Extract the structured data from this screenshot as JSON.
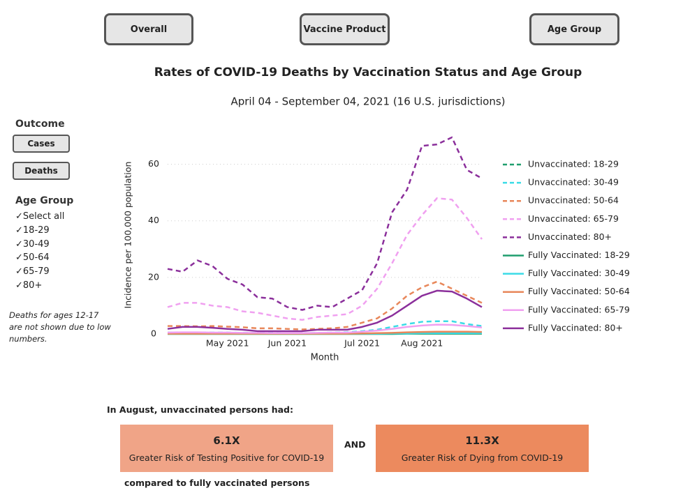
{
  "buttons": [
    "Overall",
    "Vaccine Product",
    "Age Group"
  ],
  "sidebar": {
    "outcome_title": "Outcome",
    "outcome_buttons": [
      "Cases",
      "Deaths"
    ],
    "age_title": "Age Group",
    "checks": [
      "Select all",
      "18-29",
      "30-49",
      "50-64",
      "65-79",
      "80+"
    ],
    "note": "Deaths for ages 12-17 are not shown due to low numbers."
  },
  "chart_data": {
    "type": "line",
    "title": "Rates of COVID-19 Deaths by Vaccination Status and Age Group",
    "subtitle": "April 04 - September 04, 2021 (16 U.S. jurisdictions)",
    "x_label": "Month",
    "y_label": "Incidence per 100,000 population",
    "categories": [
      null,
      null,
      null,
      null,
      "May 2021",
      null,
      null,
      null,
      "Jun 2021",
      null,
      null,
      null,
      null,
      "Jul 2021",
      null,
      null,
      null,
      "Aug 2021",
      null,
      null,
      null,
      null
    ],
    "ylim": [
      0,
      70
    ],
    "yticks": [
      0,
      20,
      40,
      60
    ],
    "grid": true,
    "legend": "right",
    "series": [
      {
        "name": "Unvaccinated: 18-29",
        "color": "#1f9e6e",
        "dashed": true,
        "values": [
          0.1,
          0.1,
          0.1,
          0.1,
          0.1,
          0.1,
          0.1,
          0.1,
          0.1,
          0.1,
          0.1,
          0.1,
          0.1,
          0.2,
          0.2,
          0.3,
          0.4,
          0.5,
          0.5,
          0.5,
          0.4,
          0.4
        ]
      },
      {
        "name": "Unvaccinated: 30-49",
        "color": "#3adbe6",
        "dashed": true,
        "values": [
          0.5,
          0.5,
          0.5,
          0.5,
          0.5,
          0.4,
          0.4,
          0.4,
          0.3,
          0.3,
          0.4,
          0.5,
          0.6,
          1,
          1.5,
          2.5,
          3.5,
          4.3,
          4.5,
          4.5,
          3.5,
          2.8
        ]
      },
      {
        "name": "Unvaccinated: 50-64",
        "color": "#e8875a",
        "dashed": true,
        "values": [
          2.8,
          2.8,
          2.7,
          2.8,
          2.6,
          2.4,
          2,
          2,
          1.8,
          1.6,
          1.8,
          2,
          2.5,
          4,
          5.5,
          9,
          13.5,
          16.5,
          18.5,
          16,
          13.5,
          11
        ]
      },
      {
        "name": "Unvaccinated: 65-79",
        "color": "#f0a0f0",
        "dashed": true,
        "values": [
          9.5,
          11,
          11,
          10,
          9.5,
          8,
          7.5,
          6.5,
          5.5,
          5,
          6,
          6.5,
          7,
          10,
          16,
          25,
          35,
          42,
          48,
          47.5,
          41,
          33.5
        ]
      },
      {
        "name": "Unvaccinated: 80+",
        "color": "#8b2f9b",
        "dashed": true,
        "values": [
          23,
          22,
          26,
          24,
          19.5,
          17.5,
          13,
          12.5,
          9.5,
          8.5,
          10,
          9.5,
          12.5,
          15.5,
          25,
          43,
          51,
          66.5,
          67,
          69.5,
          58,
          55
        ]
      },
      {
        "name": "Fully Vaccinated: 18-29",
        "color": "#1f9e6e",
        "dashed": false,
        "values": [
          0,
          0,
          0,
          0,
          0,
          0,
          0,
          0,
          0,
          0,
          0,
          0,
          0,
          0,
          0,
          0,
          0.1,
          0.1,
          0.1,
          0.1,
          0.1,
          0.1
        ]
      },
      {
        "name": "Fully Vaccinated: 30-49",
        "color": "#3adbe6",
        "dashed": false,
        "values": [
          0.1,
          0.1,
          0.1,
          0.1,
          0.1,
          0.1,
          0.1,
          0.1,
          0.1,
          0.1,
          0.1,
          0.1,
          0.1,
          0.1,
          0.1,
          0.2,
          0.2,
          0.3,
          0.3,
          0.3,
          0.3,
          0.3
        ]
      },
      {
        "name": "Fully Vaccinated: 50-64",
        "color": "#e8875a",
        "dashed": false,
        "values": [
          0.1,
          0.1,
          0.1,
          0.1,
          0.1,
          0.1,
          0.1,
          0.1,
          0.1,
          0.1,
          0.1,
          0.1,
          0.1,
          0.2,
          0.3,
          0.4,
          0.6,
          0.7,
          0.8,
          0.8,
          0.8,
          0.7
        ]
      },
      {
        "name": "Fully Vaccinated: 65-79",
        "color": "#f0a0f0",
        "dashed": false,
        "values": [
          0.5,
          0.6,
          0.6,
          0.5,
          0.5,
          0.4,
          0.4,
          0.3,
          0.3,
          0.3,
          0.4,
          0.5,
          0.5,
          0.8,
          1.2,
          1.8,
          2.5,
          3,
          3.3,
          3.2,
          2.8,
          2.3
        ]
      },
      {
        "name": "Fully Vaccinated: 80+",
        "color": "#8b2f9b",
        "dashed": false,
        "values": [
          1.8,
          2.5,
          2.5,
          2.2,
          1.8,
          1.5,
          1,
          1,
          1,
          1,
          1.5,
          1.5,
          1.5,
          2.5,
          4,
          6.5,
          10,
          13.5,
          15.3,
          15,
          12.5,
          9.5
        ]
      }
    ]
  },
  "summary": {
    "heading": "In August, unvaccinated persons had:",
    "cards": [
      {
        "value": "6.1X",
        "text": "Greater Risk of Testing Positive for COVID-19",
        "color": "#f0a487"
      },
      {
        "value": "11.3X",
        "text": "Greater Risk of Dying from COVID-19",
        "color": "#ec8a5e"
      }
    ],
    "joiner": "AND",
    "footer": "compared to fully vaccinated persons"
  }
}
